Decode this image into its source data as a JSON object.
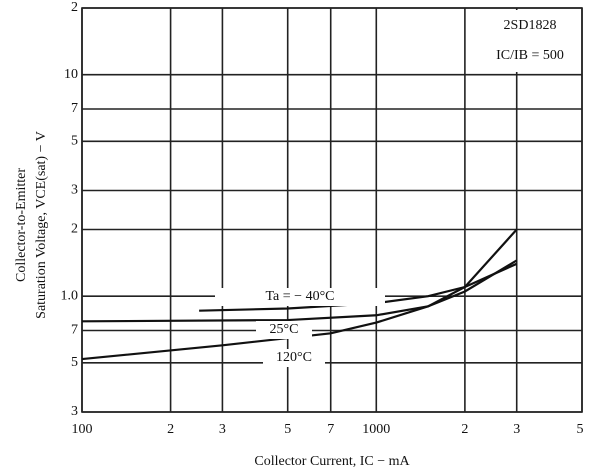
{
  "chart_data": {
    "type": "line",
    "xlabel": "Collector Current, IC − mA",
    "ylabel": [
      "Collector-to-Emitter",
      "Saturation Voltage, VCE(sat) − V"
    ],
    "annotations": [
      "2SD1828",
      "IC/IB = 500"
    ],
    "log_x": true,
    "log_y": true,
    "grid": true,
    "xlim": [
      100,
      5000
    ],
    "xticks": [
      100,
      {
        "value": 200,
        "label": "2"
      },
      {
        "value": 300,
        "label": "3"
      },
      {
        "value": 500,
        "label": "5"
      },
      {
        "value": 700,
        "label": "7"
      },
      1000,
      {
        "value": 2000,
        "label": "2"
      },
      {
        "value": 3000,
        "label": "3"
      },
      {
        "value": 5000,
        "label": "5"
      }
    ],
    "ylim": [
      0.3,
      20
    ],
    "yticks": [
      {
        "value": 20,
        "label": "2"
      },
      10,
      7,
      5,
      3,
      2,
      {
        "value": 1,
        "label": "1.0"
      },
      {
        "value": 0.7,
        "label": "7"
      },
      {
        "value": 0.5,
        "label": "5"
      },
      {
        "value": 0.3,
        "label": "3"
      }
    ],
    "series": [
      {
        "name": "Ta = − 40°C",
        "color": "#111111",
        "x": [
          250,
          500,
          1000,
          1500,
          2000,
          3000
        ],
        "values": [
          0.86,
          0.88,
          0.93,
          1.0,
          1.1,
          1.4
        ]
      },
      {
        "name": "25°C",
        "color": "#111111",
        "x": [
          100,
          500,
          1000,
          1500,
          2000,
          3000
        ],
        "values": [
          0.77,
          0.78,
          0.82,
          0.9,
          1.05,
          1.45
        ]
      },
      {
        "name": "120°C",
        "color": "#111111",
        "x": [
          100,
          300,
          700,
          1000,
          1500,
          2000,
          3000
        ],
        "values": [
          0.52,
          0.6,
          0.68,
          0.76,
          0.9,
          1.1,
          2.0
        ]
      }
    ]
  }
}
